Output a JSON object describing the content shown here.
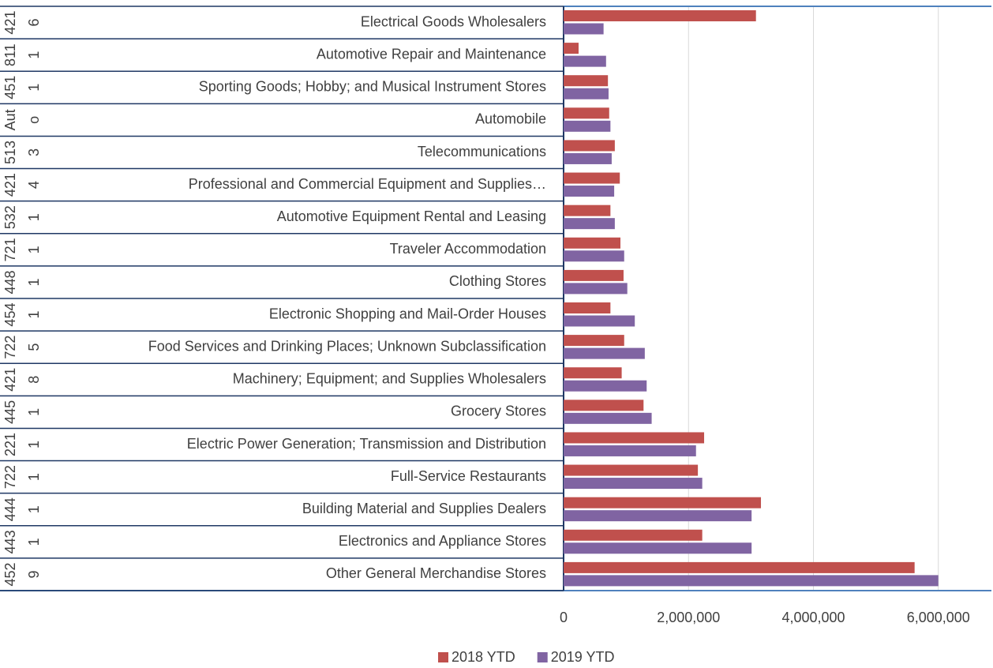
{
  "chart_data": {
    "type": "bar",
    "orientation": "horizontal",
    "category_groups": [
      "421",
      "811",
      "451",
      "Aut",
      "513",
      "421",
      "532",
      "721",
      "448",
      "454",
      "722",
      "421",
      "445",
      "221",
      "722",
      "444",
      "443",
      "452"
    ],
    "category_subgroups": [
      "6",
      "1",
      "1",
      "o",
      "3",
      "4",
      "1",
      "1",
      "1",
      "1",
      "5",
      "8",
      "1",
      "1",
      "1",
      "1",
      "1",
      "9"
    ],
    "categories": [
      "Electrical Goods Wholesalers",
      "Automotive Repair and Maintenance",
      "Sporting Goods; Hobby; and Musical Instrument Stores",
      "Automobile",
      "Telecommunications",
      "Professional and Commercial Equipment and Supplies…",
      "Automotive Equipment Rental and Leasing",
      "Traveler Accommodation",
      "Clothing Stores",
      "Electronic Shopping and Mail-Order Houses",
      "Food Services and Drinking Places; Unknown Subclassification",
      "Machinery; Equipment; and Supplies Wholesalers",
      "Grocery Stores",
      "Electric Power Generation; Transmission and Distribution",
      "Full-Service Restaurants",
      "Building Material and Supplies Dealers",
      "Electronics and Appliance Stores",
      "Other General Merchandise Stores"
    ],
    "series": [
      {
        "name": "2018 YTD",
        "color": "#c0504d",
        "values": [
          3080000,
          240000,
          710000,
          730000,
          820000,
          900000,
          750000,
          910000,
          960000,
          750000,
          970000,
          930000,
          1280000,
          2250000,
          2150000,
          3160000,
          2220000,
          5620000
        ]
      },
      {
        "name": "2019 YTD",
        "color": "#8064a2",
        "values": [
          640000,
          680000,
          720000,
          750000,
          770000,
          810000,
          820000,
          970000,
          1020000,
          1140000,
          1300000,
          1330000,
          1410000,
          2120000,
          2220000,
          3010000,
          3010000,
          6000000
        ]
      }
    ],
    "xlim": [
      0,
      6850000
    ],
    "xticks": [
      0,
      {
        "value": 2000000,
        "label": "2,000,000"
      },
      {
        "value": 4000000,
        "label": "4,000,000"
      },
      {
        "value": 6000000,
        "label": "6,000,000"
      }
    ],
    "grid": true,
    "legend": "bottom"
  }
}
